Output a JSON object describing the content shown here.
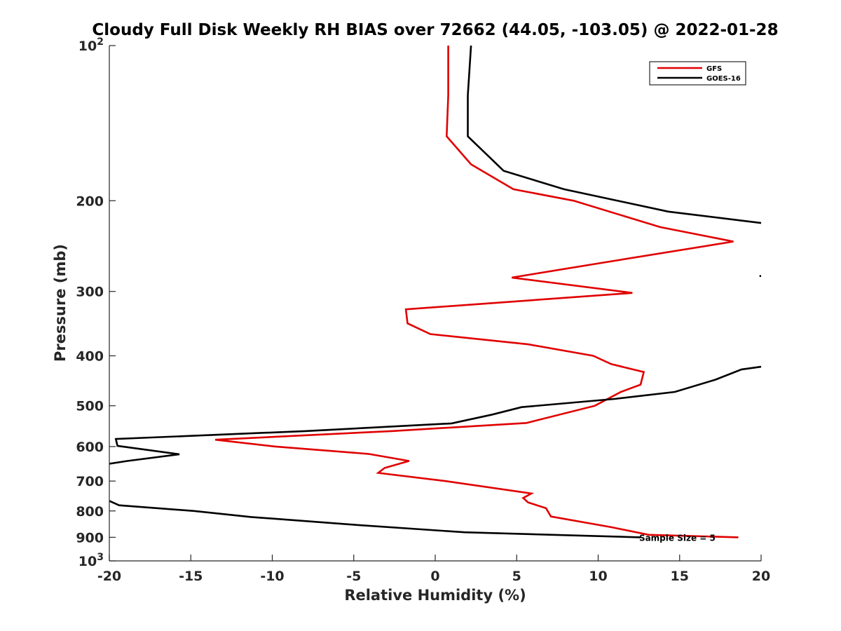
{
  "chart_data": {
    "type": "line",
    "title": "Cloudy Full Disk Weekly RH BIAS over 72662 (44.05, -103.05) @ 2022-01-28",
    "xlabel": "Relative Humidity (%)",
    "ylabel": "Pressure (mb)",
    "xlim": [
      -20,
      20
    ],
    "ylim": [
      100,
      1000
    ],
    "y_scale": "log",
    "y_reversed": true,
    "grid": false,
    "legend_position": "top-right",
    "x_ticks": [
      -20,
      -15,
      -10,
      -5,
      0,
      5,
      10,
      15,
      20
    ],
    "x_tick_labels": [
      "-20",
      "-15",
      "-10",
      "-5",
      "0",
      "5",
      "10",
      "15",
      "20"
    ],
    "y_ticks": [
      100,
      200,
      300,
      400,
      500,
      600,
      700,
      800,
      900,
      1000
    ],
    "y_tick_labels": [
      {
        "base": "10",
        "exp": "2"
      },
      {
        "base": "200"
      },
      {
        "base": "300"
      },
      {
        "base": "400"
      },
      {
        "base": "500"
      },
      {
        "base": "600"
      },
      {
        "base": "700"
      },
      {
        "base": "800"
      },
      {
        "base": "900"
      },
      {
        "base": "10",
        "exp": "3"
      }
    ],
    "series": [
      {
        "name": "GFS",
        "color": "#e00000",
        "points": [
          [
            0.8,
            100
          ],
          [
            0.8,
            125
          ],
          [
            0.7,
            150
          ],
          [
            2.2,
            170
          ],
          [
            4.8,
            190
          ],
          [
            8.5,
            200
          ],
          [
            13.8,
            225
          ],
          [
            18.3,
            240
          ],
          [
            9.9,
            265
          ],
          [
            4.7,
            282
          ],
          [
            12.1,
            302
          ],
          [
            -1.8,
            325
          ],
          [
            -1.7,
            346
          ],
          [
            -0.3,
            363
          ],
          [
            5.7,
            380
          ],
          [
            9.7,
            400
          ],
          [
            10.8,
            415
          ],
          [
            12.8,
            430
          ],
          [
            12.6,
            455
          ],
          [
            11.4,
            470
          ],
          [
            9.8,
            500
          ],
          [
            5.6,
            540
          ],
          [
            -2.7,
            560
          ],
          [
            -13.5,
            582
          ],
          [
            -9.8,
            600
          ],
          [
            -4.1,
            620
          ],
          [
            -1.6,
            640
          ],
          [
            -3.1,
            660
          ],
          [
            -3.5,
            675
          ],
          [
            0.6,
            700
          ],
          [
            5.9,
            740
          ],
          [
            5.4,
            755
          ],
          [
            5.7,
            770
          ],
          [
            6.8,
            790
          ],
          [
            7.1,
            820
          ],
          [
            10.8,
            860
          ],
          [
            13.1,
            890
          ],
          [
            18.6,
            900
          ]
        ]
      },
      {
        "name": "GOES-16",
        "color": "#000000",
        "segments": [
          [
            [
              2.2,
              100
            ],
            [
              2.0,
              125
            ],
            [
              2.0,
              150
            ],
            [
              4.2,
              175
            ],
            [
              7.9,
              190
            ],
            [
              14.3,
              210
            ],
            [
              20.0,
              221
            ]
          ],
          [
            [
              19.9,
              280
            ],
            [
              20.0,
              280
            ]
          ],
          [
            [
              20.0,
              420
            ],
            [
              18.8,
              425
            ],
            [
              17.2,
              445
            ],
            [
              14.7,
              470
            ],
            [
              11.0,
              485
            ],
            [
              5.3,
              503
            ],
            [
              3.5,
              520
            ],
            [
              1.0,
              541
            ],
            [
              -8.0,
              560
            ],
            [
              -19.6,
              580
            ],
            [
              -19.5,
              598
            ],
            [
              -15.7,
              621
            ],
            [
              -18.9,
              640
            ],
            [
              -20.0,
              648
            ]
          ],
          [
            [
              -20.0,
              765
            ],
            [
              -19.4,
              780
            ],
            [
              -14.8,
              800
            ],
            [
              -11.3,
              822
            ],
            [
              -5.2,
              850
            ],
            [
              1.8,
              880
            ],
            [
              12.6,
              900
            ]
          ]
        ]
      }
    ],
    "annotations": [
      {
        "text": "Sample Size = 5",
        "x": 12.6,
        "y": 900
      }
    ]
  }
}
